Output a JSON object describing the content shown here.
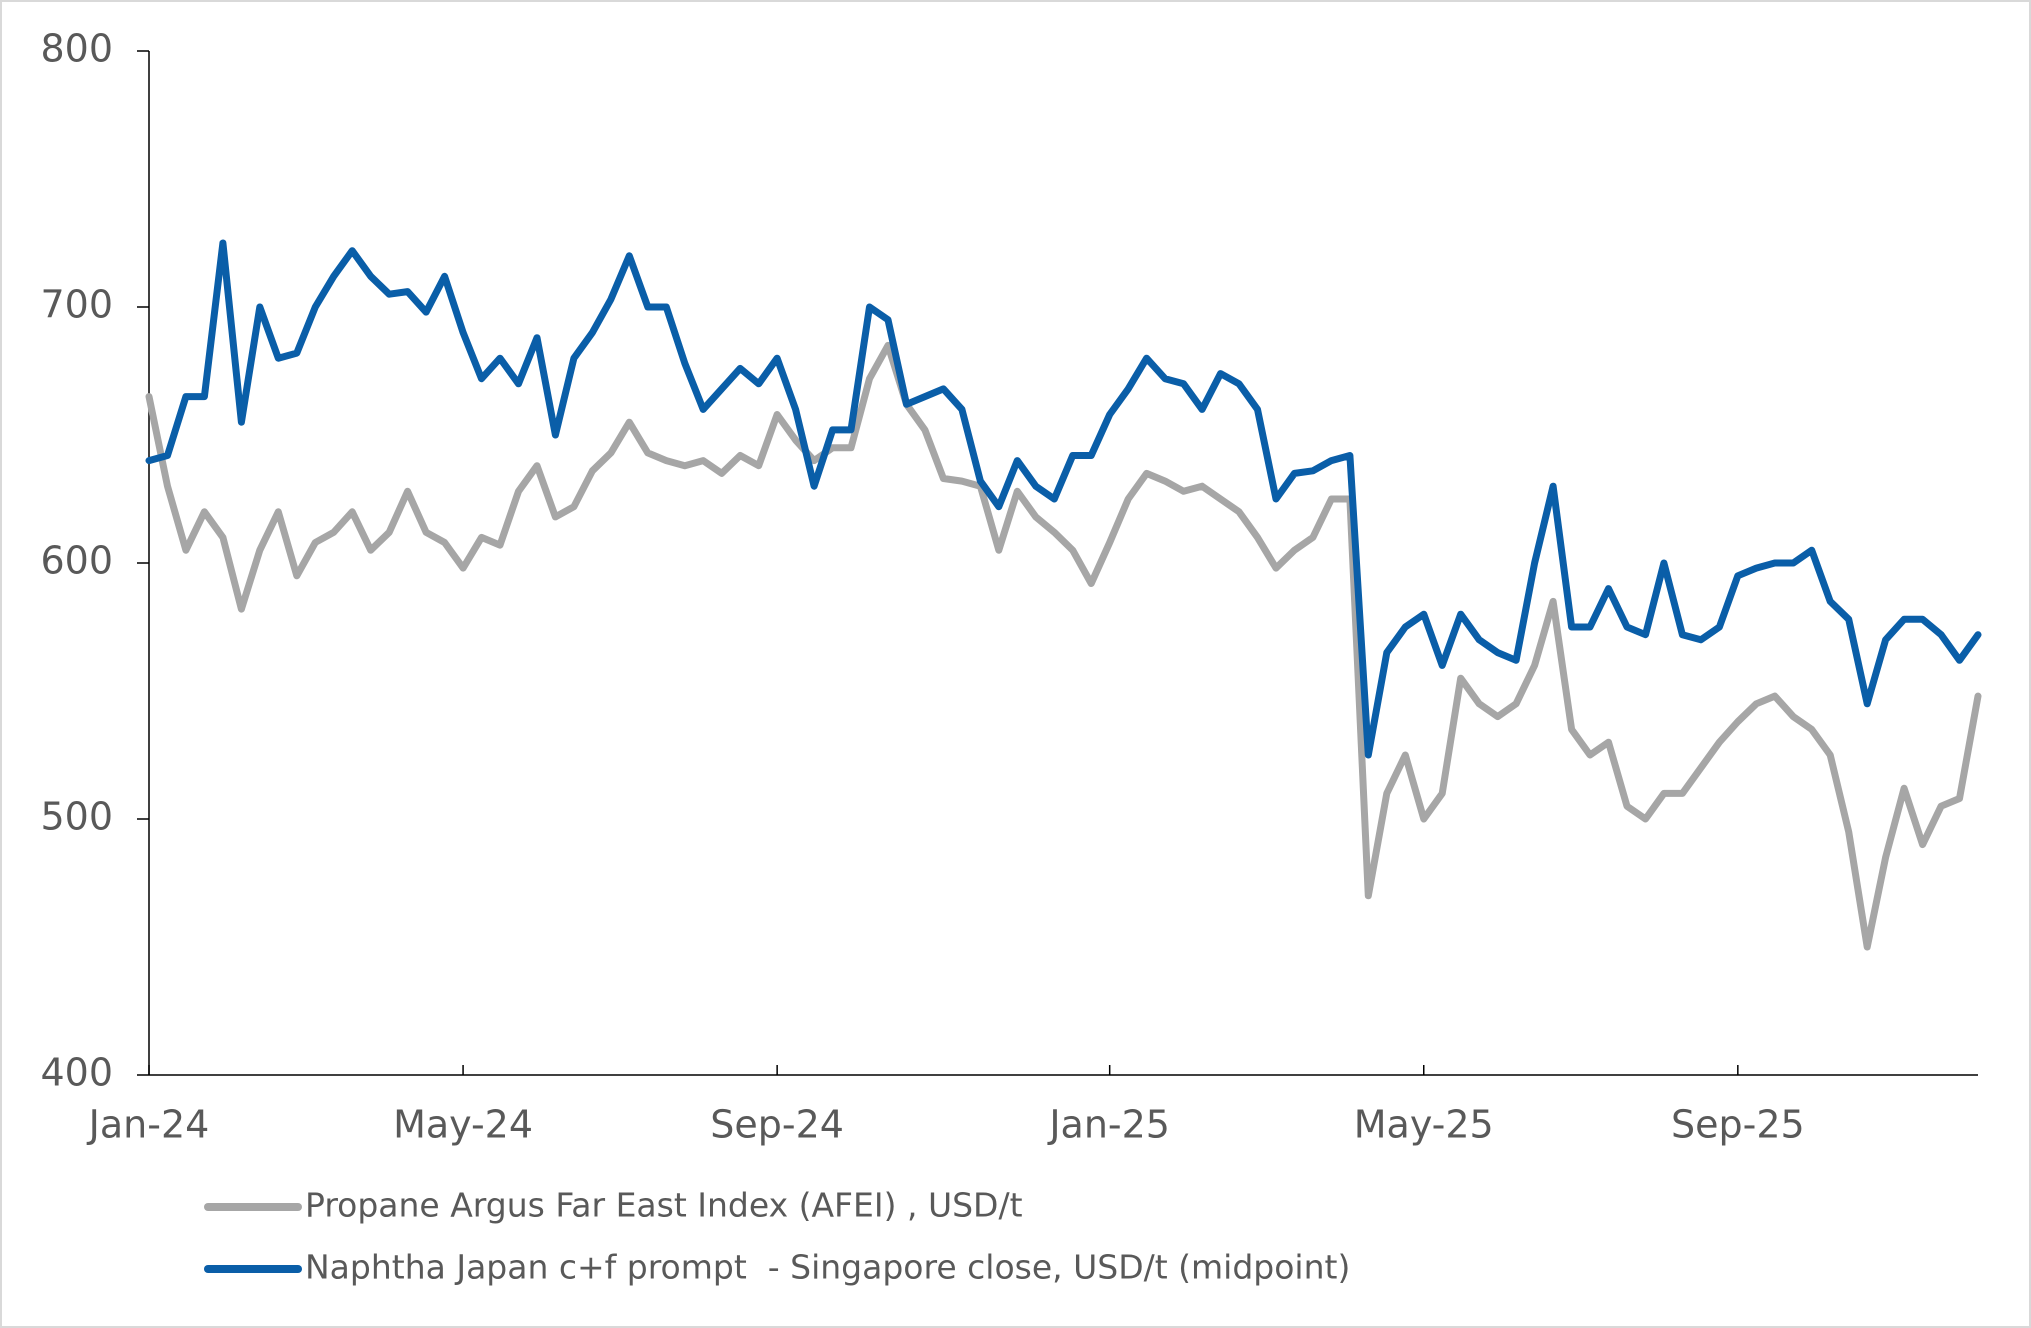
{
  "chart_data": {
    "type": "line",
    "categories": [
      "Jan-24",
      null,
      null,
      null,
      null,
      null,
      null,
      null,
      null,
      null,
      null,
      null,
      null,
      null,
      null,
      null,
      null,
      "May-24",
      null,
      null,
      null,
      null,
      null,
      null,
      null,
      null,
      null,
      null,
      null,
      null,
      null,
      null,
      null,
      null,
      "Sep-24",
      null,
      null,
      null,
      null,
      null,
      null,
      null,
      null,
      null,
      null,
      null,
      null,
      null,
      null,
      null,
      null,
      null,
      "Jan-25",
      null,
      null,
      null,
      null,
      null,
      null,
      null,
      null,
      null,
      null,
      null,
      null,
      null,
      null,
      null,
      null,
      "May-25",
      null,
      null,
      null,
      null,
      null,
      null,
      null,
      null,
      null,
      null,
      null,
      null,
      null,
      null,
      null,
      null,
      "Sep-25",
      null,
      null,
      null,
      null,
      null,
      null,
      null,
      null,
      null,
      null,
      null,
      null,
      null
    ],
    "series": [
      {
        "name": "Propane Argus Far East Index (AFEI) , USD/t",
        "color": "#a6a6a6",
        "values": [
          665,
          630,
          605,
          620,
          610,
          582,
          605,
          620,
          595,
          608,
          612,
          620,
          605,
          612,
          628,
          612,
          608,
          598,
          610,
          607,
          628,
          638,
          618,
          622,
          636,
          643,
          655,
          643,
          640,
          638,
          640,
          635,
          642,
          638,
          658,
          648,
          640,
          645,
          645,
          672,
          685,
          662,
          652,
          633,
          632,
          630,
          605,
          628,
          618,
          612,
          605,
          592,
          608,
          625,
          635,
          632,
          628,
          630,
          625,
          620,
          610,
          598,
          605,
          610,
          625,
          625,
          470,
          510,
          525,
          500,
          510,
          555,
          545,
          540,
          545,
          560,
          585,
          535,
          525,
          530,
          505,
          500,
          510,
          510,
          520,
          530,
          538,
          545,
          548,
          540,
          535,
          525,
          495,
          450,
          485,
          512,
          490,
          505,
          508,
          548
        ]
      },
      {
        "name": "Naphtha Japan c+f prompt  - Singapore close, USD/t (midpoint)",
        "color": "#0a5ea8",
        "values": [
          640,
          642,
          665,
          665,
          725,
          655,
          700,
          680,
          682,
          700,
          712,
          722,
          712,
          705,
          706,
          698,
          712,
          690,
          672,
          680,
          670,
          688,
          650,
          680,
          690,
          703,
          720,
          700,
          700,
          678,
          660,
          668,
          676,
          670,
          680,
          660,
          630,
          652,
          652,
          700,
          695,
          662,
          665,
          668,
          660,
          632,
          622,
          640,
          630,
          625,
          642,
          642,
          658,
          668,
          680,
          672,
          670,
          660,
          674,
          670,
          660,
          625,
          635,
          636,
          640,
          642,
          525,
          565,
          575,
          580,
          560,
          580,
          570,
          565,
          562,
          600,
          630,
          575,
          575,
          590,
          575,
          572,
          600,
          572,
          570,
          575,
          595,
          598,
          600,
          600,
          605,
          585,
          578,
          545,
          570,
          578,
          578,
          572,
          562,
          572
        ]
      }
    ],
    "ylim": [
      400,
      800
    ],
    "yticks": [
      400,
      500,
      600,
      700,
      800
    ],
    "grid": false,
    "legend": "bottom"
  }
}
